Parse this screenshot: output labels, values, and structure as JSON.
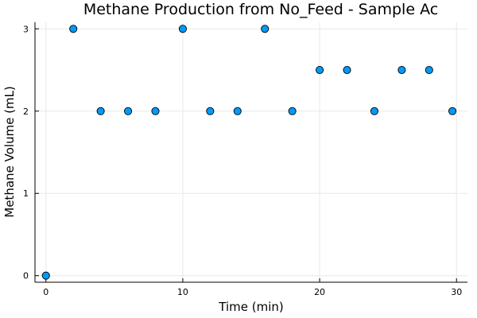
{
  "chart_data": {
    "type": "scatter",
    "title": "Methane Production from No_Feed - Sample Ac",
    "xlabel": "Time (min)",
    "ylabel": "Methane Volume (mL)",
    "xlim": [
      -0.8,
      30.8
    ],
    "ylim": [
      -0.08,
      3.08
    ],
    "xticks": [
      0,
      10,
      20,
      30
    ],
    "yticks": [
      0,
      1,
      2,
      3
    ],
    "grid": true,
    "legend": "none",
    "series": [
      {
        "name": "Sample Ac",
        "color": "#009af9",
        "x": [
          0,
          2,
          4,
          6,
          8,
          10,
          12,
          14,
          16,
          18,
          20,
          22,
          24,
          26,
          28,
          29.7
        ],
        "y": [
          0,
          3,
          2,
          2,
          2,
          3,
          2,
          2,
          3,
          2,
          2.5,
          2.5,
          2,
          2.5,
          2.5,
          2
        ]
      }
    ]
  }
}
